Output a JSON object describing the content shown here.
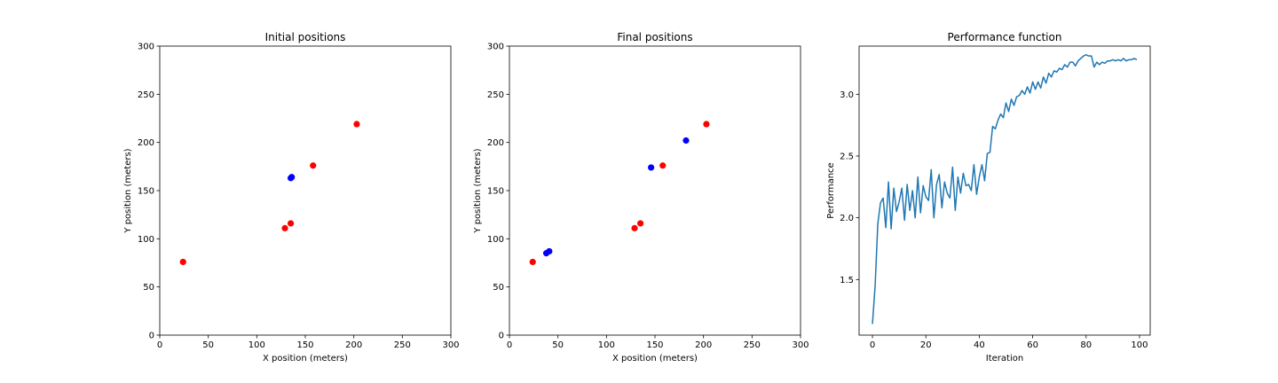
{
  "colors": {
    "red_points": "#ff0000",
    "blue_points": "#0000ff",
    "line": "#1f77b4"
  },
  "chart_data": [
    {
      "type": "scatter",
      "title": "Initial positions",
      "xlabel": "X position (meters)",
      "ylabel": "Y position (meters)",
      "xlim": [
        0,
        300
      ],
      "ylim": [
        0,
        300
      ],
      "xticks": [
        0,
        50,
        100,
        150,
        200,
        250,
        300
      ],
      "yticks": [
        0,
        50,
        100,
        150,
        200,
        250,
        300
      ],
      "grid": false,
      "series": [
        {
          "color": "#ff0000",
          "points": [
            [
              24,
              76
            ],
            [
              129,
              111
            ],
            [
              135,
              116
            ],
            [
              158,
              176
            ],
            [
              203,
              219
            ]
          ]
        },
        {
          "color": "#0000ff",
          "points": [
            [
              135,
              163
            ],
            [
              136,
              164
            ]
          ]
        }
      ]
    },
    {
      "type": "scatter",
      "title": "Final positions",
      "xlabel": "X position (meters)",
      "ylabel": "Y position (meters)",
      "xlim": [
        0,
        300
      ],
      "ylim": [
        0,
        300
      ],
      "xticks": [
        0,
        50,
        100,
        150,
        200,
        250,
        300
      ],
      "yticks": [
        0,
        50,
        100,
        150,
        200,
        250,
        300
      ],
      "grid": false,
      "series": [
        {
          "color": "#ff0000",
          "points": [
            [
              24,
              76
            ],
            [
              129,
              111
            ],
            [
              135,
              116
            ],
            [
              158,
              176
            ],
            [
              203,
              219
            ]
          ]
        },
        {
          "color": "#0000ff",
          "points": [
            [
              38,
              85
            ],
            [
              41,
              87
            ],
            [
              146,
              174
            ],
            [
              182,
              202
            ]
          ]
        }
      ]
    },
    {
      "type": "line",
      "title": "Performance function",
      "xlabel": "Iteration",
      "ylabel": "Performance",
      "xlim": [
        -5,
        104
      ],
      "ylim": [
        1.05,
        3.39
      ],
      "xticks": [
        0,
        20,
        40,
        60,
        80,
        100
      ],
      "yticks": [
        1.5,
        2.0,
        2.5,
        3.0
      ],
      "yticklabels": [
        "1.5",
        "2.0",
        "2.5",
        "3.0"
      ],
      "grid": false,
      "series": [
        {
          "color": "#1f77b4",
          "x": [
            0,
            1,
            2,
            3,
            4,
            5,
            6,
            7,
            8,
            9,
            10,
            11,
            12,
            13,
            14,
            15,
            16,
            17,
            18,
            19,
            20,
            21,
            22,
            23,
            24,
            25,
            26,
            27,
            28,
            29,
            30,
            31,
            32,
            33,
            34,
            35,
            36,
            37,
            38,
            39,
            40,
            41,
            42,
            43,
            44,
            45,
            46,
            47,
            48,
            49,
            50,
            51,
            52,
            53,
            54,
            55,
            56,
            57,
            58,
            59,
            60,
            61,
            62,
            63,
            64,
            65,
            66,
            67,
            68,
            69,
            70,
            71,
            72,
            73,
            74,
            75,
            76,
            77,
            78,
            79,
            80,
            81,
            82,
            83,
            84,
            85,
            86,
            87,
            88,
            89,
            90,
            91,
            92,
            93,
            94,
            95,
            96,
            97,
            98,
            99
          ],
          "y": [
            1.14,
            1.45,
            1.95,
            2.12,
            2.16,
            1.92,
            2.29,
            1.91,
            2.24,
            2.05,
            2.13,
            2.24,
            1.98,
            2.27,
            2.06,
            2.22,
            2.0,
            2.33,
            2.04,
            2.26,
            2.17,
            2.14,
            2.39,
            2.0,
            2.27,
            2.35,
            2.08,
            2.29,
            2.2,
            2.16,
            2.41,
            2.06,
            2.33,
            2.2,
            2.36,
            2.26,
            2.27,
            2.22,
            2.43,
            2.19,
            2.33,
            2.43,
            2.3,
            2.52,
            2.53,
            2.74,
            2.72,
            2.79,
            2.84,
            2.81,
            2.93,
            2.86,
            2.96,
            2.91,
            2.98,
            2.99,
            3.03,
            3.0,
            3.06,
            3.01,
            3.1,
            3.04,
            3.1,
            3.05,
            3.14,
            3.09,
            3.17,
            3.14,
            3.19,
            3.18,
            3.21,
            3.2,
            3.24,
            3.22,
            3.26,
            3.26,
            3.23,
            3.27,
            3.29,
            3.31,
            3.32,
            3.31,
            3.31,
            3.22,
            3.26,
            3.24,
            3.26,
            3.25,
            3.27,
            3.27,
            3.28,
            3.27,
            3.28,
            3.27,
            3.29,
            3.27,
            3.28,
            3.28,
            3.29,
            3.28
          ]
        }
      ]
    }
  ]
}
